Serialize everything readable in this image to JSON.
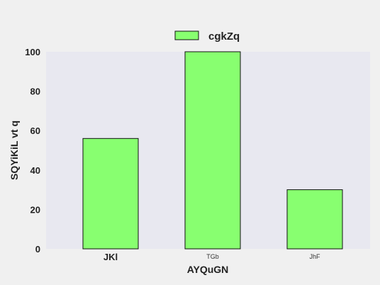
{
  "chart_data": {
    "type": "bar",
    "categories": [
      "JKl",
      "TGb",
      "JhF"
    ],
    "series": [
      {
        "name": "cgkZq",
        "values": [
          56,
          100,
          30
        ]
      }
    ],
    "xlabel": "AYQuGN",
    "ylabel": "SQYiKiL vt q",
    "ylim": [
      0,
      100
    ],
    "yticks": [
      0,
      20,
      40,
      60,
      80,
      100
    ],
    "legend_position": "top-center",
    "grid": false,
    "colors": {
      "background": "#f0f0f0",
      "plot_area": "#e8e8f0",
      "bar_fill": "#88ff70",
      "bar_edge": "#111111"
    }
  }
}
